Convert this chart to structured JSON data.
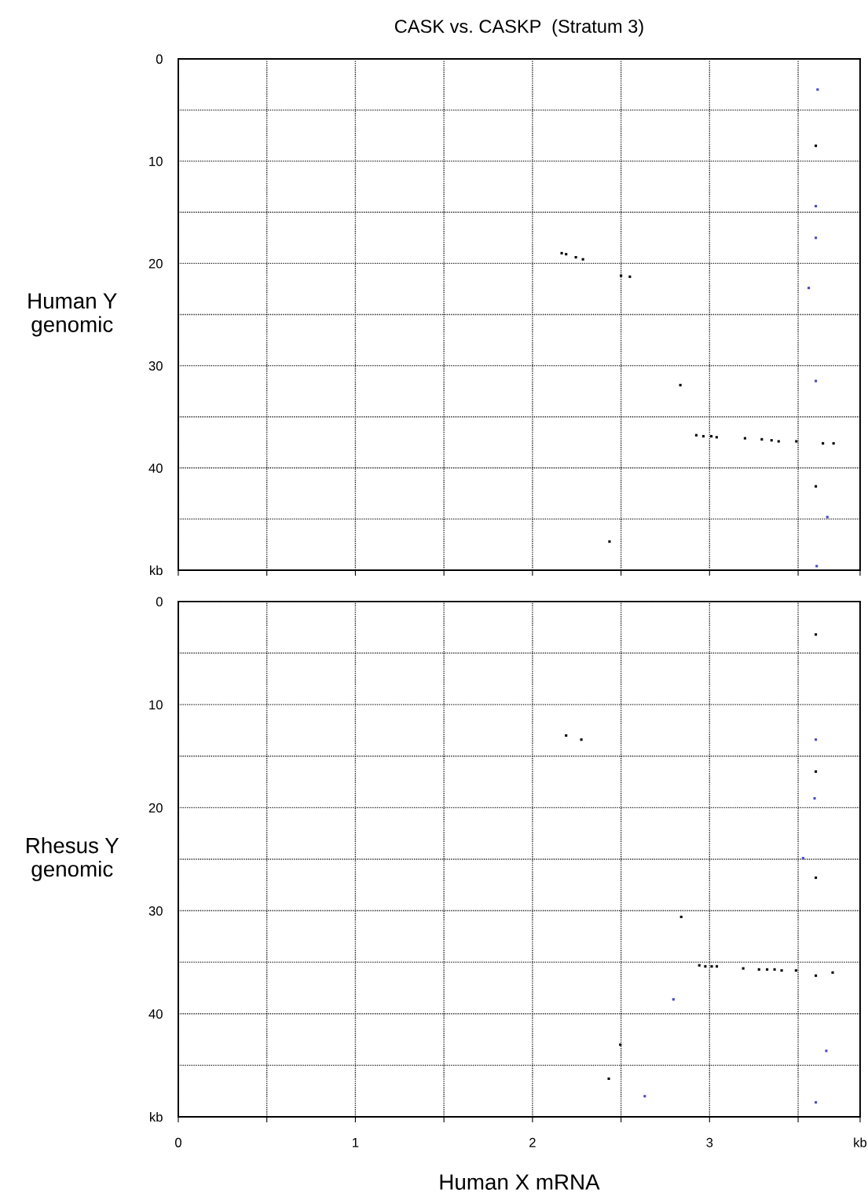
{
  "chart_data": [
    {
      "type": "scatter",
      "title": "CASK vs. CASKP  (Stratum 3)",
      "ylabel": "Human Y\ngenomic",
      "xlim": [
        0,
        3.85
      ],
      "ylim": [
        50,
        0
      ],
      "grid": true,
      "marker": "square",
      "tick_labels": "y",
      "xticks": [
        {
          "value": 0,
          "label": null
        },
        {
          "value": 0.5,
          "label": null
        },
        {
          "value": 1,
          "label": null
        },
        {
          "value": 1.5,
          "label": null
        },
        {
          "value": 2,
          "label": null
        },
        {
          "value": 2.5,
          "label": null
        },
        {
          "value": 3,
          "label": null
        },
        {
          "value": 3.5,
          "label": null
        },
        {
          "value": 3.85,
          "label": null
        }
      ],
      "yticks": [
        0,
        {
          "value": 5,
          "label": null
        },
        10,
        {
          "value": 15,
          "label": null
        },
        20,
        {
          "value": 25,
          "label": null
        },
        30,
        {
          "value": 35,
          "label": null
        },
        40,
        {
          "value": 45,
          "label": null
        },
        {
          "value": 50,
          "label": "kb"
        }
      ],
      "series": [
        {
          "color": "#000000",
          "x": [
            2.165,
            2.19,
            2.245,
            2.285,
            2.5,
            2.55,
            2.835,
            2.925,
            2.965,
            3.01,
            3.04,
            3.2,
            3.295,
            3.35,
            3.39,
            3.49,
            3.64,
            3.7,
            3.6,
            3.6,
            2.435
          ],
          "values": [
            19.0,
            19.1,
            19.4,
            19.6,
            21.2,
            21.3,
            31.9,
            36.8,
            36.9,
            36.9,
            37.0,
            37.1,
            37.2,
            37.3,
            37.4,
            37.4,
            37.6,
            37.6,
            8.5,
            41.8,
            47.2
          ]
        },
        {
          "color": "#4a4ac8",
          "x": [
            3.61,
            3.6,
            3.6,
            3.56,
            3.6,
            3.665,
            3.605
          ],
          "values": [
            3.0,
            14.4,
            17.5,
            22.4,
            31.5,
            44.8,
            49.6
          ]
        }
      ]
    },
    {
      "type": "scatter",
      "ylabel": "Rhesus Y\ngenomic",
      "xlabel": "Human X mRNA",
      "xlim": [
        0,
        3.85
      ],
      "ylim": [
        50,
        0
      ],
      "grid": true,
      "marker": "square",
      "xticks": [
        0,
        {
          "value": 0.5,
          "label": null
        },
        1,
        {
          "value": 1.5,
          "label": null
        },
        2,
        {
          "value": 2.5,
          "label": null
        },
        3,
        {
          "value": 3.5,
          "label": null
        },
        {
          "value": 3.85,
          "label": "kb"
        }
      ],
      "yticks": [
        0,
        {
          "value": 5,
          "label": null
        },
        10,
        {
          "value": 15,
          "label": null
        },
        20,
        {
          "value": 25,
          "label": null
        },
        30,
        {
          "value": 35,
          "label": null
        },
        40,
        {
          "value": 45,
          "label": null
        },
        {
          "value": 50,
          "label": "kb"
        }
      ],
      "series": [
        {
          "color": "#000000",
          "x": [
            3.6,
            2.19,
            2.276,
            3.6,
            3.6,
            2.84,
            2.942,
            2.976,
            3.012,
            3.041,
            3.19,
            3.279,
            3.325,
            3.367,
            3.407,
            3.488,
            3.6,
            3.695,
            2.496,
            2.431
          ],
          "values": [
            3.2,
            13.0,
            13.4,
            16.5,
            26.8,
            30.6,
            35.3,
            35.4,
            35.4,
            35.4,
            35.6,
            35.7,
            35.7,
            35.7,
            35.8,
            35.8,
            36.3,
            36.0,
            43.0,
            46.3
          ]
        },
        {
          "color": "#4a4ac8",
          "x": [
            3.6,
            3.593,
            3.528,
            2.796,
            3.659,
            2.634,
            3.6
          ],
          "values": [
            13.4,
            19.1,
            24.9,
            38.6,
            43.6,
            48.0,
            48.6
          ]
        }
      ]
    }
  ]
}
